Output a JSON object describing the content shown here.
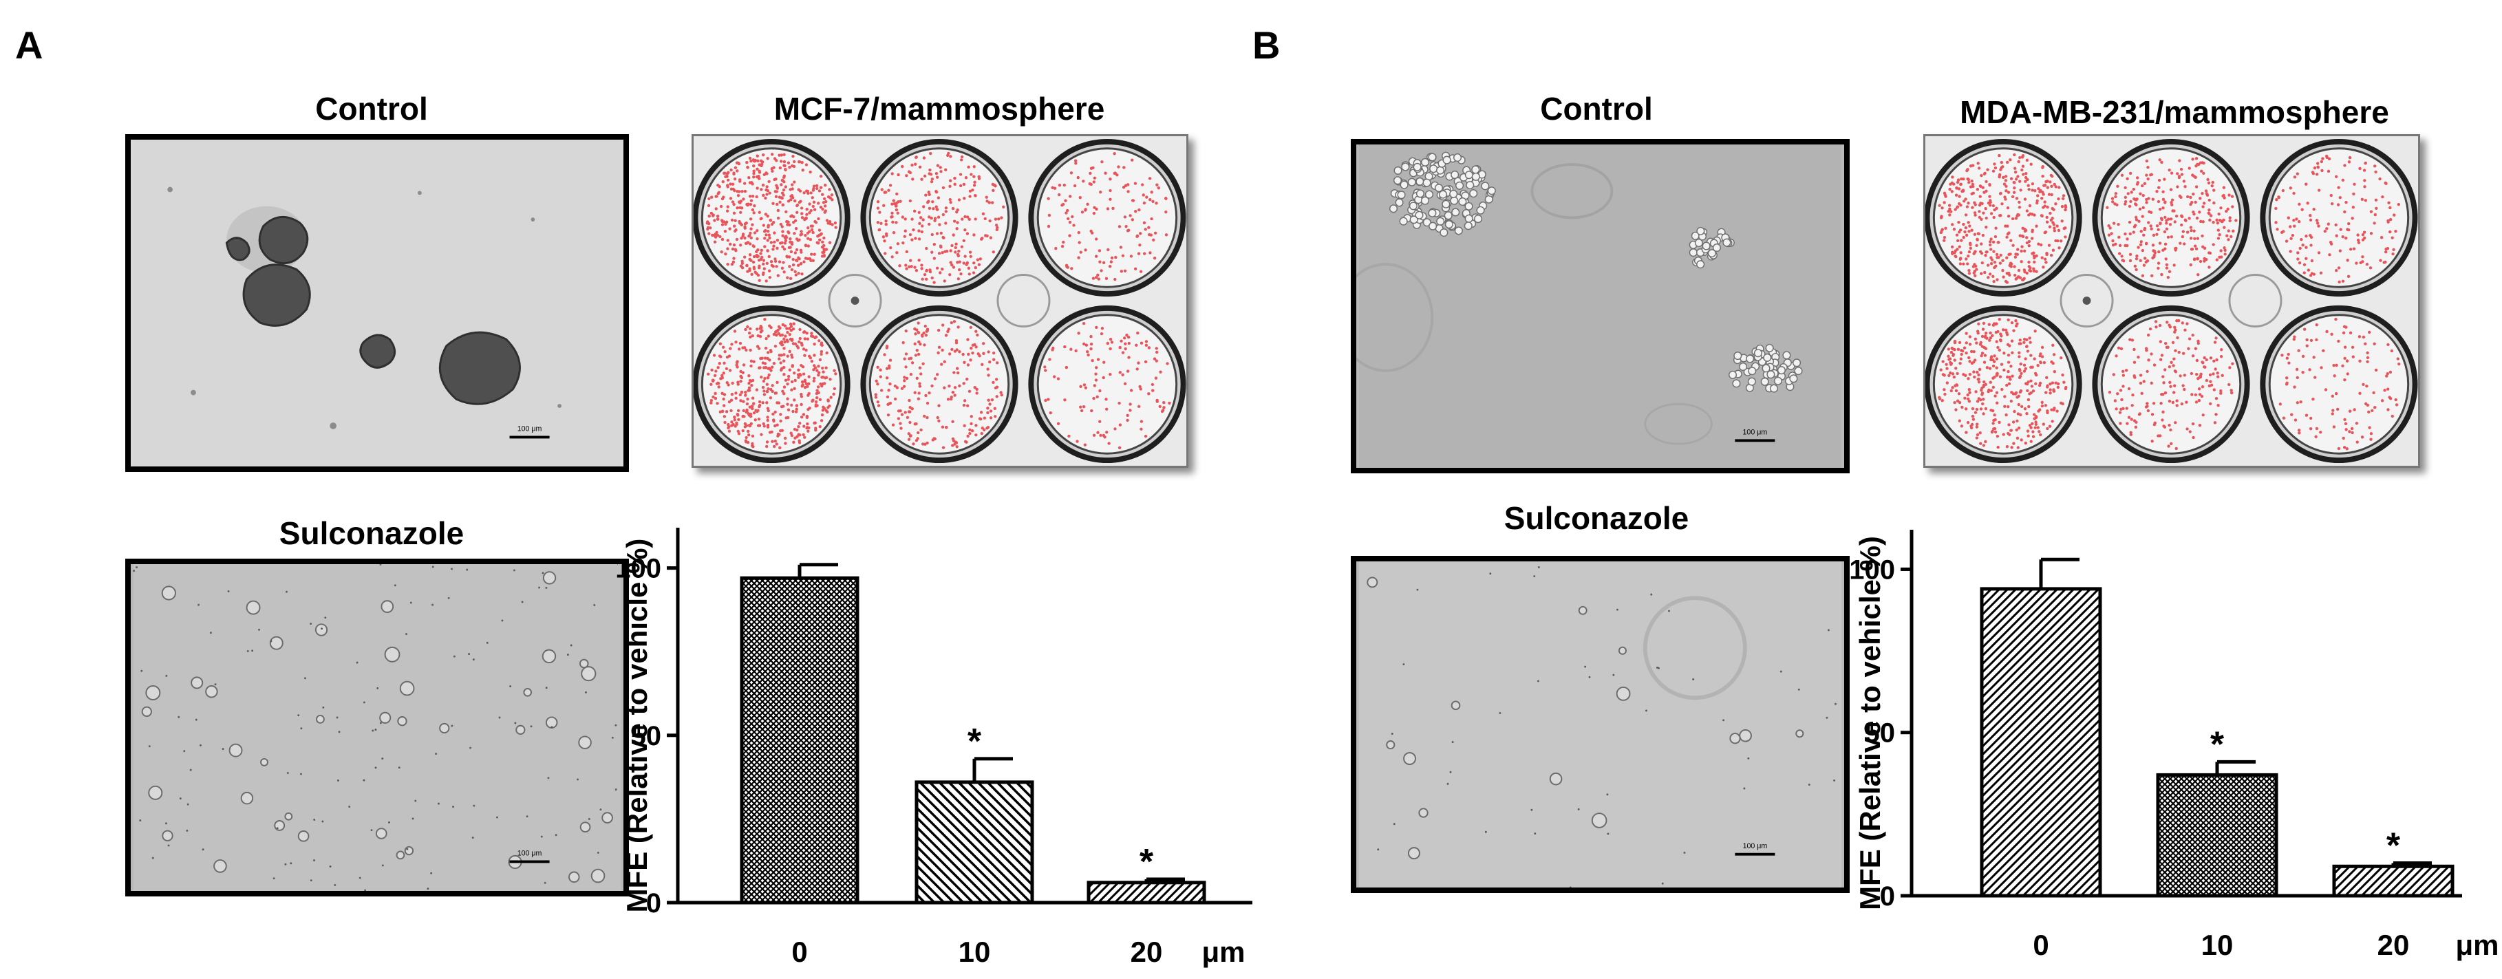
{
  "panels": [
    {
      "label": "A",
      "control_title": "Control",
      "treatment_title": "Sulconazole",
      "plate_title": "MCF-7/mammosphere",
      "scale_bar_text": "100 μm"
    },
    {
      "label": "B",
      "control_title": "Control",
      "treatment_title": "Sulconazole",
      "plate_title": "MDA-MB-231/mammosphere",
      "scale_bar_text": "100 μm"
    }
  ],
  "colors": {
    "colony_dot": "#e8545a",
    "frame": "#000000"
  },
  "chart_data": [
    {
      "type": "bar",
      "categories": [
        "0",
        "10",
        "20"
      ],
      "x_unit": "μm",
      "values": [
        97,
        36,
        6
      ],
      "errors": [
        4,
        7,
        1
      ],
      "significance": [
        "",
        "*",
        "*"
      ],
      "patterns": [
        "crosshatch",
        "diagonal-back",
        "diagonal-forward"
      ],
      "ylabel": "MFE (Relative to vehicle %)",
      "yticks": [
        0,
        50,
        100
      ],
      "ylim": [
        0,
        110
      ]
    },
    {
      "type": "bar",
      "categories": [
        "0",
        "10",
        "20"
      ],
      "x_unit": "μm",
      "values": [
        94,
        37,
        9
      ],
      "errors": [
        9,
        4,
        1
      ],
      "significance": [
        "",
        "*",
        "*"
      ],
      "patterns": [
        "diagonal-forward",
        "crosshatch",
        "diagonal-forward"
      ],
      "ylabel": "MFE (Relative to vehicle %)",
      "yticks": [
        0,
        50,
        100
      ],
      "ylim": [
        0,
        110
      ]
    }
  ]
}
